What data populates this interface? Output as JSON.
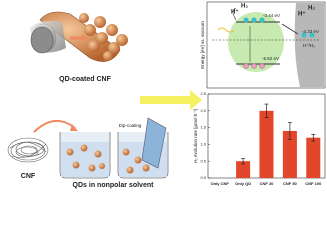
{
  "schematic": {
    "top_label": "QD-coated CNF",
    "step_label": "Dip-coating",
    "cnf_label": "CNF",
    "solvent_label": "QDs in nonpolar solvent"
  },
  "energy_diagram": {
    "axis_label": "Energy [eV] vs. vacuum",
    "proton_left": "H⁺",
    "h2_left": "H₂",
    "proton_right": "H⁺",
    "h2_right": "H₂",
    "cb_level": "-3.44 eV",
    "fermi_level": "-4.33 eV",
    "vb_level": "-5.52 eV",
    "redox_label": "H⁺/H₂"
  },
  "chart_data": {
    "type": "bar",
    "ylabel": "H₂ evolution rate [μmol h⁻¹]",
    "categories": [
      "Only CNF",
      "Only QD",
      "CNF 20",
      "CNF 50",
      "CNF 100"
    ],
    "values": [
      0,
      0.5,
      2.0,
      1.4,
      1.2
    ],
    "errors": [
      null,
      0.08,
      0.2,
      0.25,
      0.1
    ],
    "color": "#e3472b",
    "ylim": [
      0,
      2.5
    ],
    "yticks": [
      {
        "value": 0,
        "label": "0.0"
      },
      0.5,
      {
        "value": 1,
        "label": "1.0"
      },
      1.5,
      {
        "value": 2,
        "label": "2.0"
      },
      2.5
    ]
  }
}
